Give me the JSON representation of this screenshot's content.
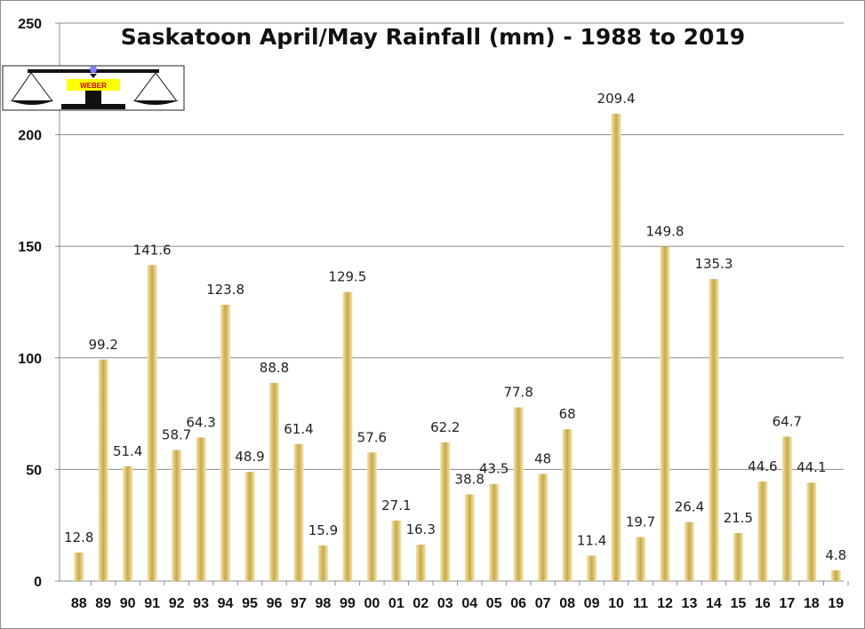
{
  "chart_data": {
    "type": "bar",
    "title": "Saskatoon April/May Rainfall  (mm) - 1988 to 2019",
    "xlabel": "",
    "ylabel": "",
    "ylim": [
      0,
      250
    ],
    "yticks": [
      0,
      50,
      100,
      150,
      200,
      250
    ],
    "grid": "horizontal",
    "legend": "none",
    "bar_color": "#d4b866",
    "categories": [
      "88",
      "89",
      "90",
      "91",
      "92",
      "93",
      "94",
      "95",
      "96",
      "97",
      "98",
      "99",
      "00",
      "01",
      "02",
      "03",
      "04",
      "05",
      "06",
      "07",
      "08",
      "09",
      "10",
      "11",
      "12",
      "13",
      "14",
      "15",
      "16",
      "17",
      "18",
      "19"
    ],
    "values": [
      12.8,
      99.2,
      51.4,
      141.6,
      58.7,
      64.3,
      123.8,
      48.9,
      88.8,
      61.4,
      15.9,
      129.5,
      57.6,
      27.1,
      16.3,
      62.2,
      38.8,
      43.5,
      77.8,
      48,
      68,
      11.4,
      209.4,
      19.7,
      149.8,
      26.4,
      135.3,
      21.5,
      44.6,
      64.7,
      44.1,
      4.8
    ],
    "data_labels": [
      "12.8",
      "99.2",
      "51.4",
      "141.6",
      "58.7",
      "64.3",
      "123.8",
      "48.9",
      "88.8",
      "61.4",
      "15.9",
      "129.5",
      "57.6",
      "27.1",
      "16.3",
      "62.2",
      "38.8",
      "43.5",
      "77.8",
      "48",
      "68",
      "11.4",
      "209.4",
      "19.7",
      "149.8",
      "26.4",
      "135.3",
      "21.5",
      "44.6",
      "64.7",
      "44.1",
      "4.8"
    ]
  },
  "logo": {
    "text": "WEBER",
    "icon": "balance-scale-icon"
  }
}
